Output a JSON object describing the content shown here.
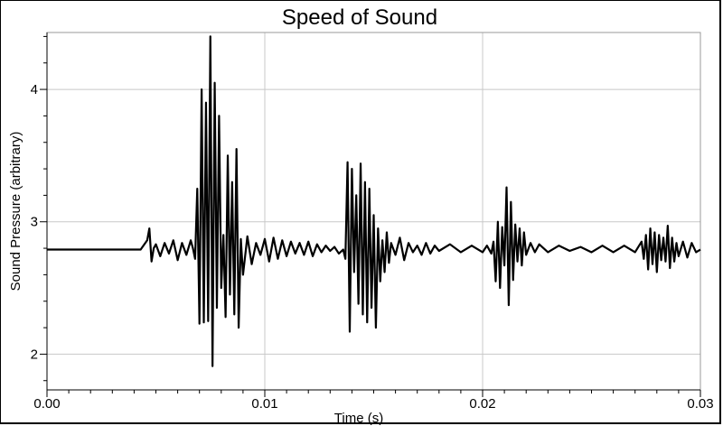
{
  "chart_data": {
    "type": "line",
    "title": "Speed of Sound",
    "xlabel": "Time (s)",
    "ylabel": "Sound Pressure (arbitrary)",
    "xlim": [
      0,
      0.03
    ],
    "ylim": [
      1.73,
      4.43
    ],
    "x_ticks": [
      0,
      0.01,
      0.02,
      0.03
    ],
    "x_tick_labels": [
      "0.00",
      "0.01",
      "0.02",
      "0.03"
    ],
    "y_ticks": [
      2,
      3,
      4
    ],
    "y_tick_labels": [
      "2",
      "3",
      "4"
    ],
    "grid": true,
    "legend": "none",
    "line_color": "#000000",
    "baseline": 2.79,
    "series": [
      {
        "x": [
          0,
          0.0043,
          0.0046,
          0.0047,
          0.0048,
          0.0049,
          0.005,
          0.0052,
          0.0054,
          0.0056,
          0.0058,
          0.006,
          0.0062,
          0.0064,
          0.0066,
          0.0067,
          0.0068,
          0.0069,
          0.007,
          0.0071,
          0.0072,
          0.0073,
          0.0074,
          0.0075,
          0.0076,
          0.0077,
          0.0078,
          0.0079,
          0.008,
          0.0081,
          0.0082,
          0.0083,
          0.0084,
          0.0085,
          0.0086,
          0.0087,
          0.0088,
          0.0089,
          0.009,
          0.0092,
          0.0094,
          0.0096,
          0.0098,
          0.01,
          0.0102,
          0.0104,
          0.0106,
          0.0108,
          0.011,
          0.0112,
          0.0114,
          0.0116,
          0.0118,
          0.012,
          0.0122,
          0.0124,
          0.0126,
          0.0128,
          0.013,
          0.0132,
          0.0134,
          0.0136,
          0.0137,
          0.0138,
          0.0139,
          0.014,
          0.0141,
          0.0142,
          0.0143,
          0.0144,
          0.0145,
          0.0146,
          0.0147,
          0.0148,
          0.0149,
          0.015,
          0.0151,
          0.0152,
          0.0153,
          0.0154,
          0.0155,
          0.0156,
          0.0157,
          0.0158,
          0.016,
          0.0162,
          0.0164,
          0.0166,
          0.0168,
          0.017,
          0.0172,
          0.0174,
          0.0176,
          0.0178,
          0.018,
          0.0185,
          0.019,
          0.0195,
          0.02,
          0.0202,
          0.0204,
          0.0205,
          0.0206,
          0.0207,
          0.0208,
          0.0209,
          0.021,
          0.0211,
          0.0212,
          0.0213,
          0.0214,
          0.0215,
          0.0216,
          0.0217,
          0.0218,
          0.0219,
          0.022,
          0.0222,
          0.0224,
          0.0226,
          0.023,
          0.0235,
          0.024,
          0.0245,
          0.025,
          0.0255,
          0.026,
          0.0265,
          0.027,
          0.0273,
          0.0274,
          0.0275,
          0.0276,
          0.0277,
          0.0278,
          0.0279,
          0.028,
          0.0281,
          0.0282,
          0.0283,
          0.0284,
          0.0285,
          0.0286,
          0.0287,
          0.0288,
          0.0289,
          0.029,
          0.0292,
          0.0294,
          0.0296,
          0.0298,
          0.03
        ],
        "values": [
          2.79,
          2.79,
          2.86,
          2.95,
          2.7,
          2.8,
          2.83,
          2.74,
          2.84,
          2.76,
          2.86,
          2.71,
          2.84,
          2.75,
          2.86,
          2.8,
          2.72,
          3.25,
          2.23,
          4.0,
          2.24,
          3.9,
          2.25,
          4.4,
          1.91,
          4.05,
          2.35,
          3.8,
          2.5,
          2.9,
          2.28,
          3.5,
          2.45,
          3.3,
          2.3,
          3.55,
          2.2,
          2.87,
          2.6,
          2.89,
          2.68,
          2.84,
          2.75,
          2.87,
          2.7,
          2.88,
          2.72,
          2.86,
          2.74,
          2.85,
          2.76,
          2.84,
          2.75,
          2.85,
          2.74,
          2.83,
          2.77,
          2.82,
          2.78,
          2.81,
          2.76,
          2.79,
          2.72,
          3.45,
          2.17,
          3.4,
          2.62,
          3.2,
          2.38,
          3.44,
          2.3,
          3.3,
          2.24,
          3.25,
          2.35,
          3.05,
          2.2,
          2.95,
          2.55,
          2.86,
          2.62,
          2.92,
          2.69,
          2.84,
          2.75,
          2.88,
          2.71,
          2.84,
          2.77,
          2.82,
          2.75,
          2.84,
          2.76,
          2.82,
          2.78,
          2.83,
          2.77,
          2.82,
          2.77,
          2.82,
          2.76,
          2.85,
          2.55,
          3.0,
          2.5,
          2.96,
          2.67,
          3.26,
          2.37,
          3.15,
          2.56,
          2.98,
          2.7,
          2.95,
          2.67,
          2.92,
          2.75,
          2.84,
          2.77,
          2.83,
          2.77,
          2.82,
          2.78,
          2.81,
          2.77,
          2.82,
          2.77,
          2.82,
          2.77,
          2.85,
          2.72,
          2.9,
          2.64,
          2.95,
          2.68,
          2.92,
          2.62,
          2.9,
          2.71,
          2.88,
          2.7,
          2.97,
          2.65,
          2.88,
          2.7,
          2.84,
          2.74,
          2.85,
          2.73,
          2.84,
          2.77,
          2.79
        ]
      }
    ]
  }
}
